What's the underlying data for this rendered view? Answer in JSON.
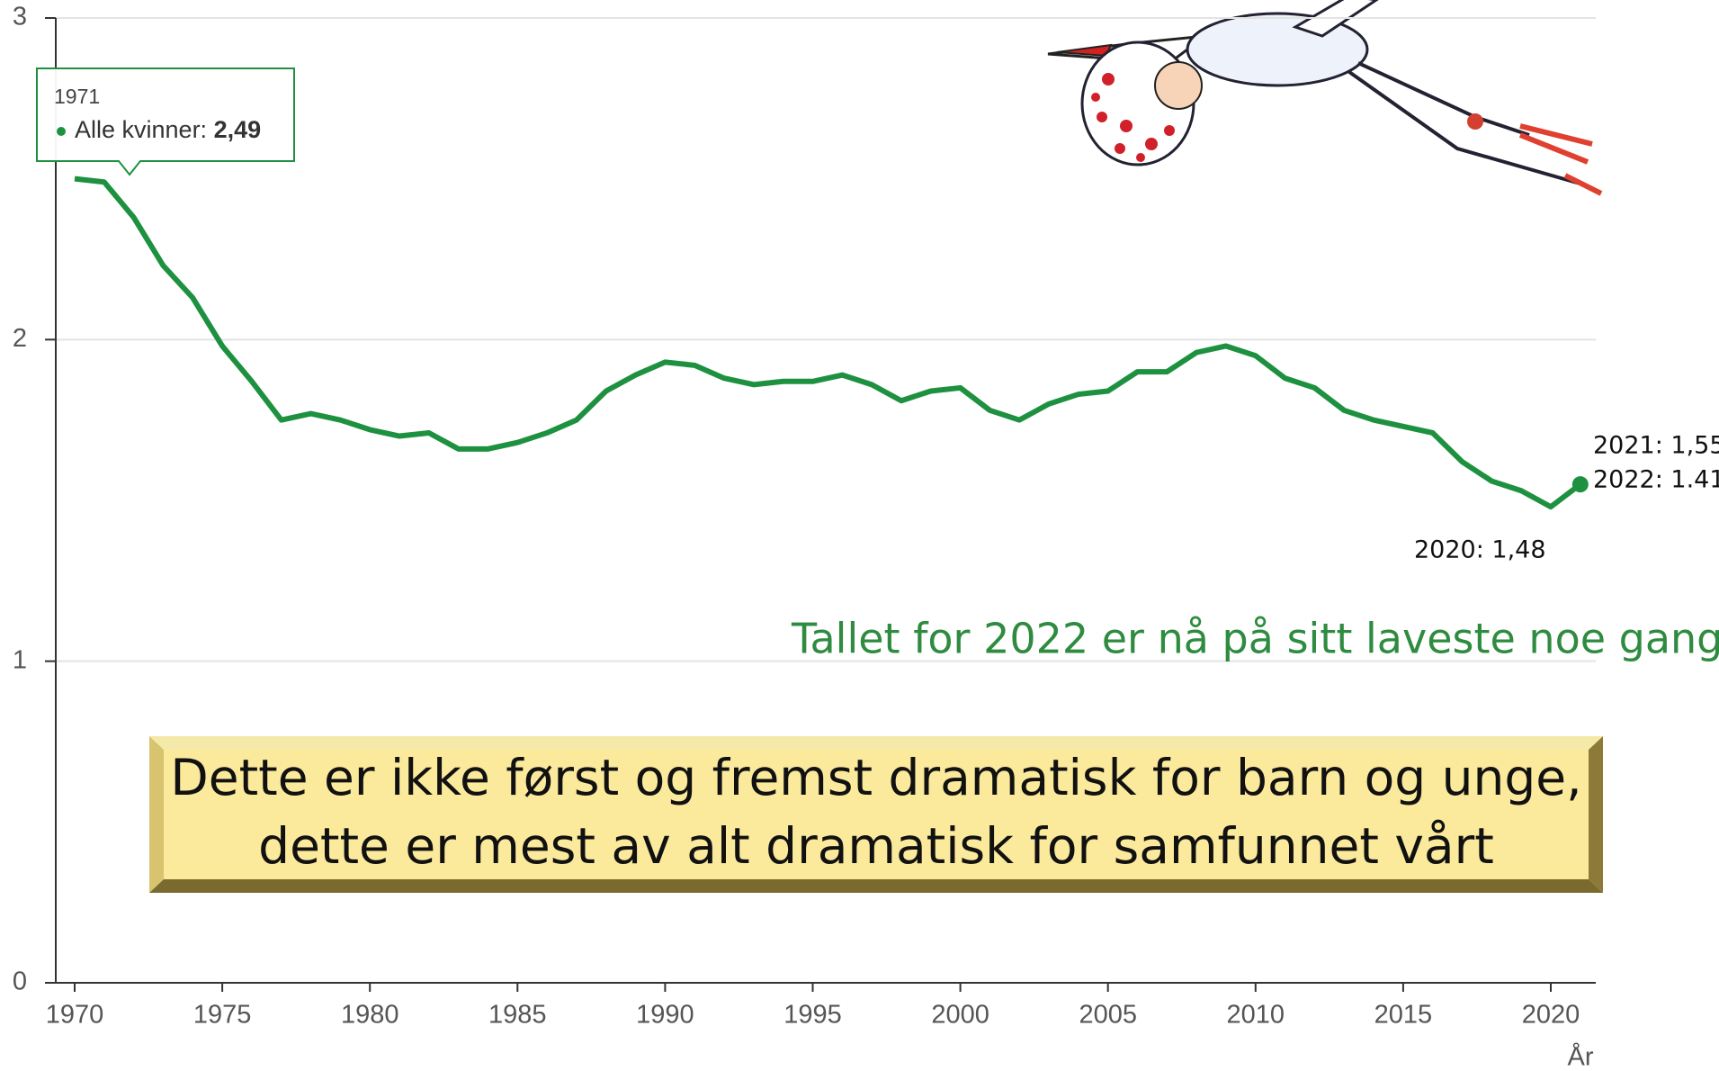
{
  "chart_data": {
    "type": "line",
    "x": [
      1970,
      1971,
      1972,
      1973,
      1974,
      1975,
      1976,
      1977,
      1978,
      1979,
      1980,
      1981,
      1982,
      1983,
      1984,
      1985,
      1986,
      1987,
      1988,
      1989,
      1990,
      1991,
      1992,
      1993,
      1994,
      1995,
      1996,
      1997,
      1998,
      1999,
      2000,
      2001,
      2002,
      2003,
      2004,
      2005,
      2006,
      2007,
      2008,
      2009,
      2010,
      2011,
      2012,
      2013,
      2014,
      2015,
      2016,
      2017,
      2018,
      2019,
      2020,
      2021
    ],
    "series": [
      {
        "color": "#1e9140",
        "values": [
          2.5,
          2.49,
          2.38,
          2.23,
          2.13,
          1.98,
          1.87,
          1.75,
          1.77,
          1.75,
          1.72,
          1.7,
          1.71,
          1.66,
          1.66,
          1.68,
          1.71,
          1.75,
          1.84,
          1.89,
          1.93,
          1.92,
          1.88,
          1.86,
          1.87,
          1.87,
          1.89,
          1.86,
          1.81,
          1.84,
          1.85,
          1.78,
          1.75,
          1.8,
          1.83,
          1.84,
          1.9,
          1.9,
          1.96,
          1.98,
          1.95,
          1.88,
          1.85,
          1.78,
          1.75,
          1.73,
          1.71,
          1.62,
          1.56,
          1.53,
          1.48,
          1.55
        ]
      }
    ],
    "xlim": [
      1969.5,
      2021.5
    ],
    "xticks": [
      1970,
      1975,
      1980,
      1985,
      1990,
      1995,
      2000,
      2005,
      2010,
      2015,
      2020
    ],
    "ylim": [
      0,
      3
    ],
    "yticks": [
      0,
      1,
      2,
      3
    ],
    "grid": true,
    "xlabel": "År",
    "tooltip": {
      "label": "Alle kvinner:",
      "value_label": "2,49"
    },
    "annotations": [
      "2021: 1,55",
      "2022: 1.41",
      "2020: 1,48",
      "Tallet for 2022 er nå på sitt laveste noe gang"
    ],
    "callout": [
      "Dette er ikke først og fremst dramatisk for barn og unge,",
      "dette er mest av alt dramatisk for samfunnet vårt"
    ]
  }
}
